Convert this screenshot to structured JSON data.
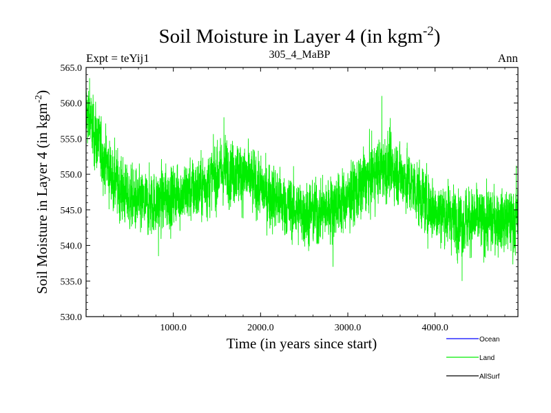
{
  "chart_data": {
    "type": "line",
    "title": "Soil Moisture in Layer 4 (in kgm",
    "title_sup": "-2",
    "title_close": ")",
    "subtitle_left": "Expt = teYij1",
    "subtitle_center": "305_4_MaBP",
    "subtitle_right": "Ann",
    "xlabel": "Time (in years since start)",
    "ylabel": "Soil Moisture in Layer 4 (in kgm",
    "ylabel_sup": "-2",
    "ylabel_close": ")",
    "xlim": [
      0,
      4950
    ],
    "ylim": [
      530,
      565
    ],
    "x_ticks": [
      1000,
      2000,
      3000,
      4000
    ],
    "x_tick_labels": [
      "1000.0",
      "2000.0",
      "3000.0",
      "4000.0"
    ],
    "y_ticks": [
      530,
      535,
      540,
      545,
      550,
      555,
      560,
      565
    ],
    "y_tick_labels": [
      "530.0",
      "535.0",
      "540.0",
      "545.0",
      "550.0",
      "555.0",
      "560.0",
      "565.0"
    ],
    "series": [
      {
        "name": "Land",
        "color": "#00ee00",
        "trend_x": [
          0,
          100,
          200,
          300,
          400,
          500,
          600,
          700,
          800,
          900,
          1000,
          1100,
          1200,
          1300,
          1400,
          1500,
          1600,
          1700,
          1800,
          1900,
          2000,
          2100,
          2200,
          2300,
          2400,
          2500,
          2600,
          2700,
          2800,
          2900,
          3000,
          3100,
          3200,
          3300,
          3400,
          3500,
          3600,
          3700,
          3800,
          3900,
          4000,
          4100,
          4200,
          4300,
          4400,
          4500,
          4600,
          4700,
          4800,
          4900,
          4950
        ],
        "trend_y": [
          559,
          555.5,
          552.5,
          549.5,
          548,
          546.5,
          546,
          545.8,
          546,
          546.5,
          547,
          547.3,
          547.6,
          548,
          549,
          550,
          550.5,
          550.5,
          550,
          549,
          548,
          547,
          546.5,
          545.5,
          545,
          544.5,
          544.5,
          544.8,
          545.5,
          546,
          546.5,
          547.5,
          549,
          550,
          551,
          551,
          550,
          549,
          547.5,
          546,
          545,
          544.5,
          544,
          543.5,
          543.5,
          543.5,
          543.5,
          543.5,
          543.5,
          543.5,
          544
        ],
        "noise_amplitude": 2.6,
        "extremes": [
          {
            "x": 40,
            "y": 563.5
          },
          {
            "x": 3390,
            "y": 561
          },
          {
            "x": 1580,
            "y": 558
          },
          {
            "x": 4310,
            "y": 535
          },
          {
            "x": 2830,
            "y": 537
          },
          {
            "x": 830,
            "y": 538.5
          },
          {
            "x": 4930,
            "y": 551.2
          }
        ]
      }
    ],
    "legend": [
      {
        "label": "Ocean",
        "color": "#0000ff"
      },
      {
        "label": "Land",
        "color": "#00ee00"
      },
      {
        "label": "AllSurf",
        "color": "#000000"
      }
    ],
    "grid": false,
    "legend_position": "bottom-right"
  }
}
